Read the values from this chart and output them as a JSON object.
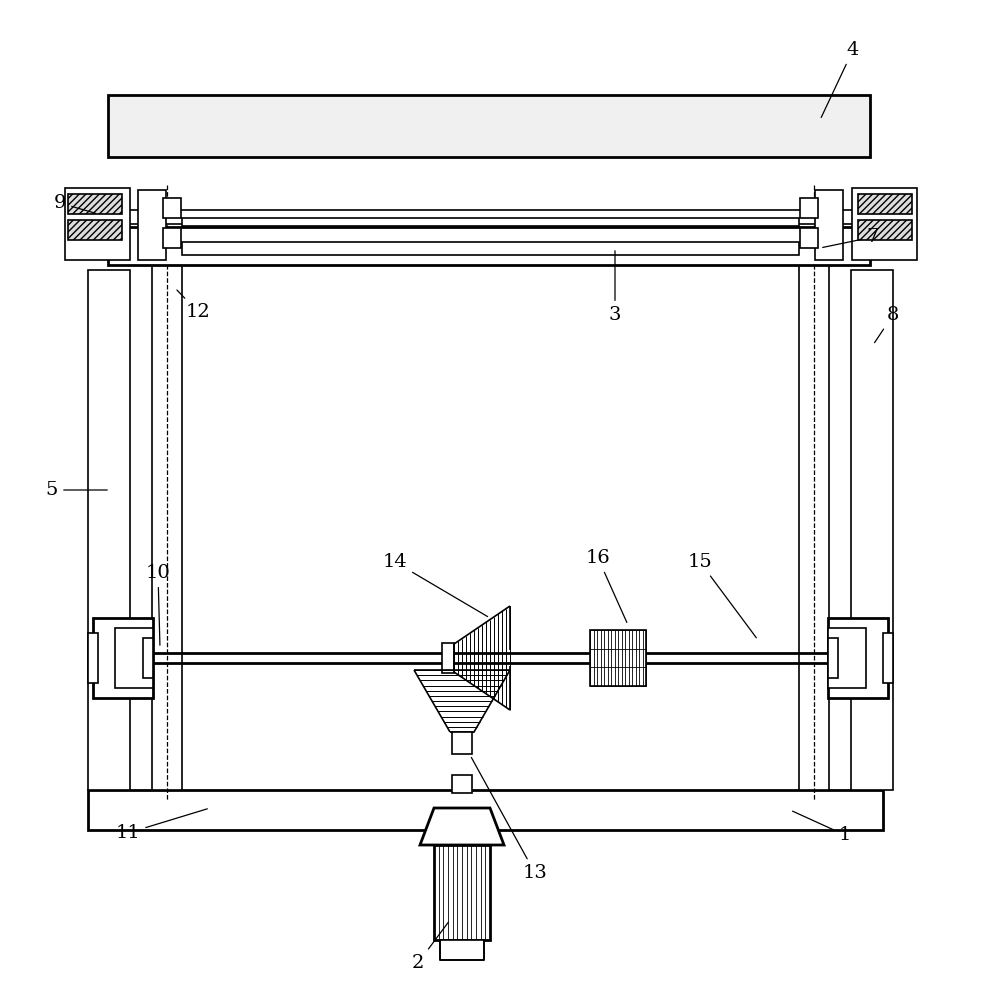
{
  "bg_color": "#ffffff",
  "line_color": "#000000",
  "label_color": "#000000"
}
